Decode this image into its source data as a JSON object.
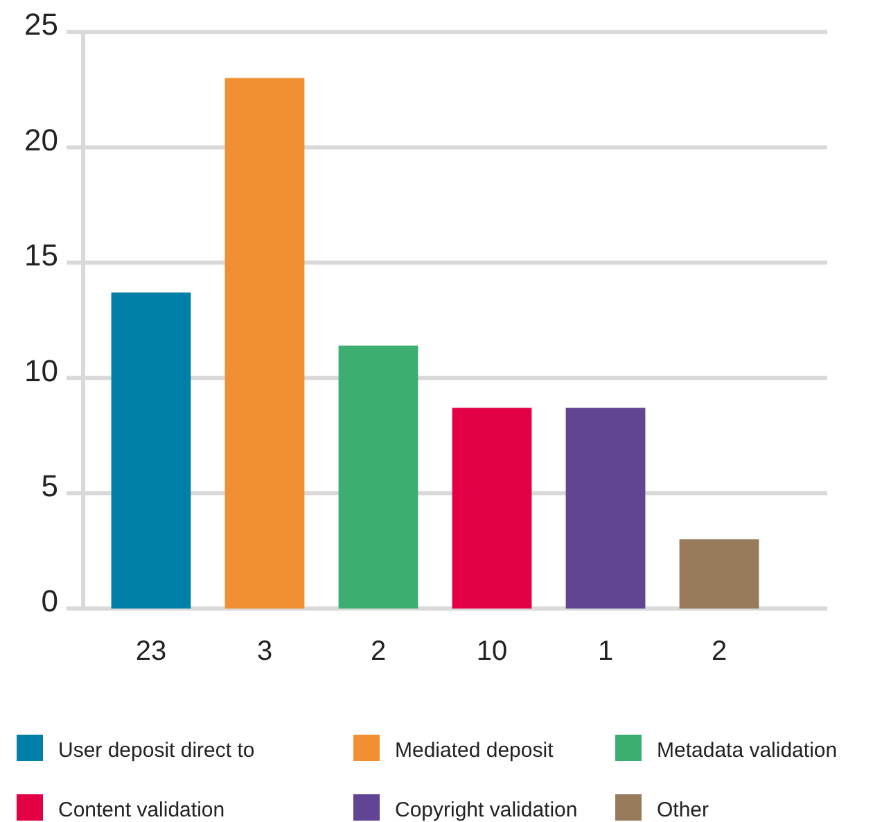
{
  "chart_data": {
    "type": "bar",
    "categories": [
      "23",
      "3",
      "2",
      "10",
      "1",
      "2"
    ],
    "stacked": true,
    "series": [
      {
        "name": "User deposit direct to",
        "color": "#0080a6",
        "values": [
          13.7,
          null,
          null,
          null,
          null,
          null
        ]
      },
      {
        "name": "Mediated deposit",
        "color": "#f28f33",
        "values": [
          null,
          23.0,
          null,
          null,
          null,
          null
        ]
      },
      {
        "name": "Metadata validation",
        "color": "#3caf70",
        "values": [
          null,
          null,
          11.4,
          null,
          null,
          null
        ]
      },
      {
        "name": "Content validation",
        "color": "#e30045",
        "values": [
          null,
          null,
          null,
          8.7,
          null,
          null
        ]
      },
      {
        "name": "Copyright validation",
        "color": "#624494",
        "values": [
          null,
          null,
          null,
          null,
          8.7,
          null
        ]
      },
      {
        "name": "Other",
        "color": "#977b5a",
        "values": [
          null,
          null,
          null,
          null,
          null,
          3.0
        ]
      }
    ],
    "ylim": [
      0,
      25
    ],
    "yticks": [
      0,
      5,
      10,
      15,
      20,
      25
    ],
    "grid": "y",
    "legend": "bottom"
  }
}
